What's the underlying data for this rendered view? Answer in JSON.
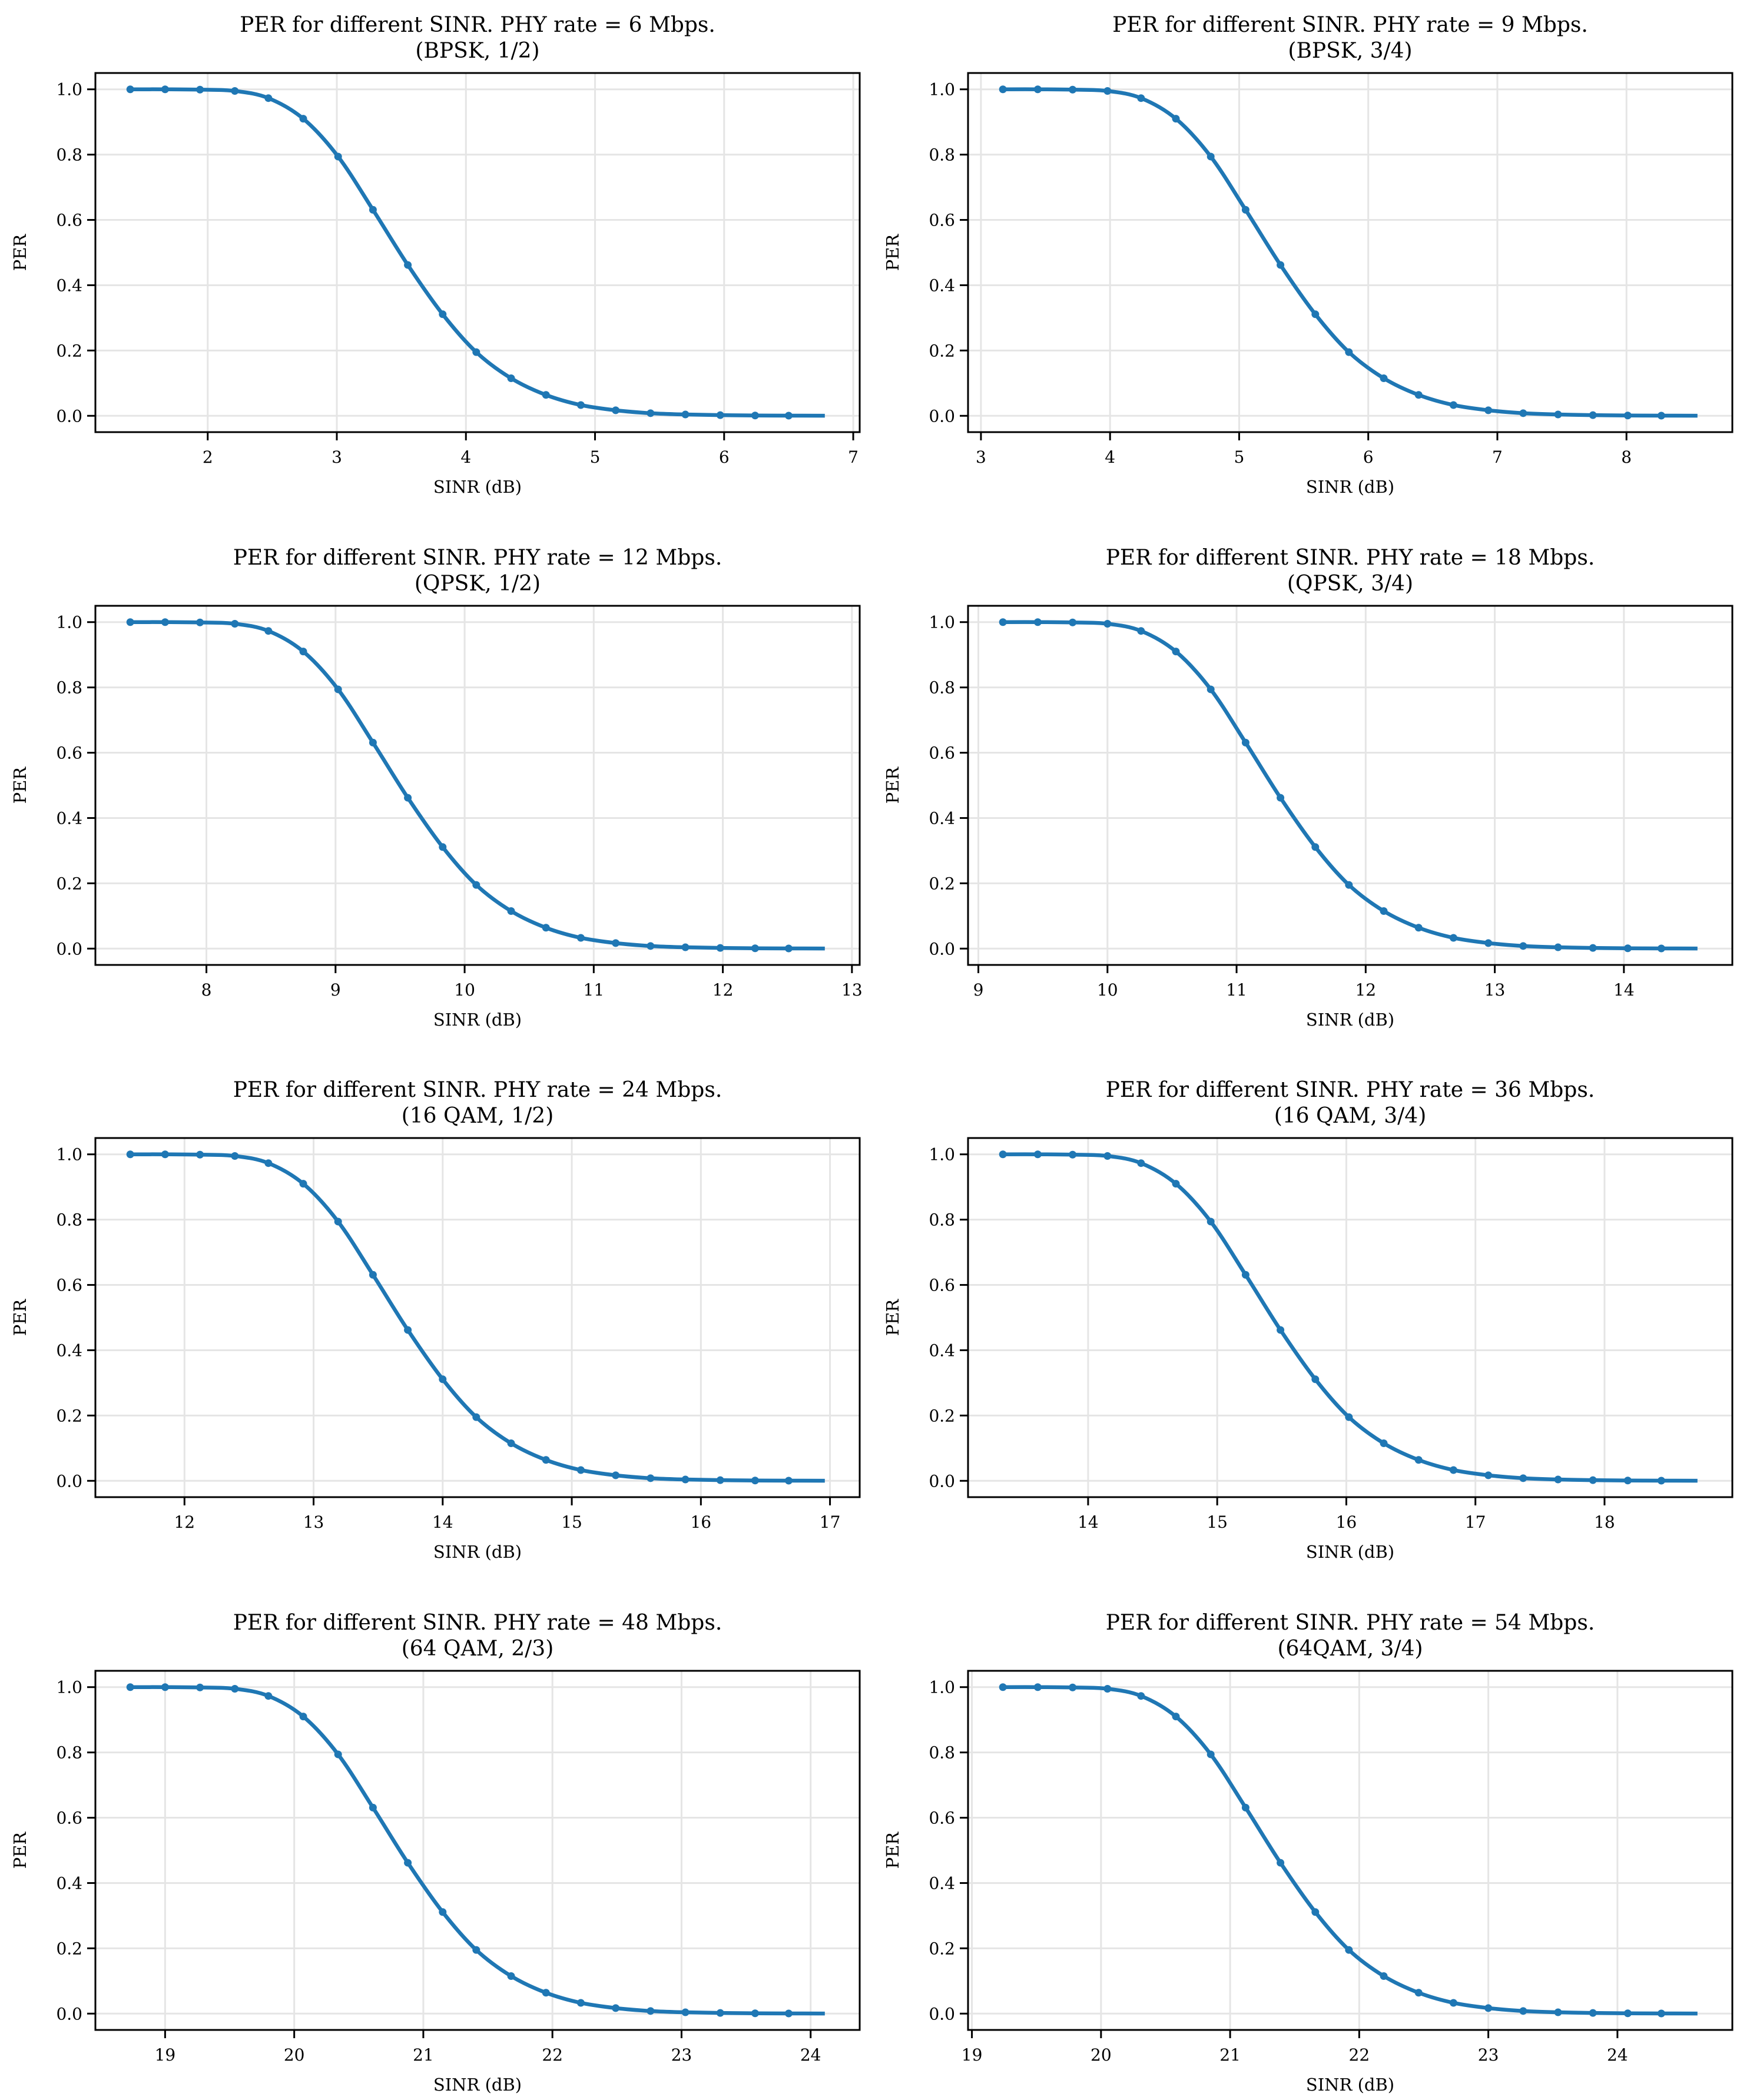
{
  "chart_data": [
    {
      "type": "line",
      "title": "PER for different SINR. PHY rate = 6 Mbps.",
      "subtitle": "(BPSK, 1/2)",
      "xlabel": "SINR (dB)",
      "ylabel": "PER",
      "xticks": [
        2,
        3,
        4,
        5,
        6,
        7
      ],
      "yticks": [
        0.0,
        0.2,
        0.4,
        0.6,
        0.8,
        1.0
      ],
      "xlim": [
        1.13,
        7.05
      ],
      "ylim": [
        -0.05,
        1.05
      ],
      "grid": true,
      "line_end": [
        6.78,
        0.0003
      ],
      "x": [
        1.4,
        1.67,
        1.94,
        2.21,
        2.47,
        2.74,
        3.01,
        3.28,
        3.55,
        3.82,
        4.08,
        4.35,
        4.62,
        4.89,
        5.16,
        5.43,
        5.7,
        5.97,
        6.24,
        6.5
      ],
      "y": [
        1.0,
        1.0,
        0.999,
        0.995,
        0.973,
        0.91,
        0.794,
        0.631,
        0.462,
        0.311,
        0.195,
        0.115,
        0.064,
        0.033,
        0.017,
        0.008,
        0.004,
        0.002,
        0.001,
        0.0005
      ]
    },
    {
      "type": "line",
      "title": "PER for different SINR. PHY rate = 9 Mbps.",
      "subtitle": "(BPSK, 3/4)",
      "xlabel": "SINR (dB)",
      "ylabel": "PER",
      "xticks": [
        3,
        4,
        5,
        6,
        7,
        8
      ],
      "yticks": [
        0.0,
        0.2,
        0.4,
        0.6,
        0.8,
        1.0
      ],
      "xlim": [
        2.9,
        8.82
      ],
      "ylim": [
        -0.05,
        1.05
      ],
      "grid": true,
      "line_end": [
        8.55,
        0.0003
      ],
      "x": [
        3.17,
        3.44,
        3.71,
        3.98,
        4.24,
        4.51,
        4.78,
        5.05,
        5.32,
        5.59,
        5.85,
        6.12,
        6.39,
        6.66,
        6.93,
        7.2,
        7.47,
        7.74,
        8.01,
        8.27
      ],
      "y": [
        1.0,
        1.0,
        0.999,
        0.995,
        0.973,
        0.91,
        0.794,
        0.631,
        0.462,
        0.311,
        0.195,
        0.115,
        0.064,
        0.033,
        0.017,
        0.008,
        0.004,
        0.002,
        0.001,
        0.0005
      ]
    },
    {
      "type": "line",
      "title": "PER for different SINR. PHY rate = 12 Mbps.",
      "subtitle": "(QPSK, 1/2)",
      "xlabel": "SINR (dB)",
      "ylabel": "PER",
      "xticks": [
        8,
        9,
        10,
        11,
        12,
        13
      ],
      "yticks": [
        0.0,
        0.2,
        0.4,
        0.6,
        0.8,
        1.0
      ],
      "xlim": [
        7.14,
        13.06
      ],
      "ylim": [
        -0.05,
        1.05
      ],
      "grid": true,
      "line_end": [
        12.79,
        0.0003
      ],
      "x": [
        7.41,
        7.68,
        7.95,
        8.22,
        8.48,
        8.75,
        9.02,
        9.29,
        9.56,
        9.83,
        10.09,
        10.36,
        10.63,
        10.9,
        11.17,
        11.44,
        11.71,
        11.98,
        12.25,
        12.51
      ],
      "y": [
        1.0,
        1.0,
        0.999,
        0.995,
        0.973,
        0.91,
        0.794,
        0.631,
        0.462,
        0.311,
        0.195,
        0.115,
        0.064,
        0.033,
        0.017,
        0.008,
        0.004,
        0.002,
        0.001,
        0.0005
      ]
    },
    {
      "type": "line",
      "title": "PER for different SINR. PHY rate = 18 Mbps.",
      "subtitle": "(QPSK, 3/4)",
      "xlabel": "SINR (dB)",
      "ylabel": "PER",
      "xticks": [
        9,
        10,
        11,
        12,
        13,
        14
      ],
      "yticks": [
        0.0,
        0.2,
        0.4,
        0.6,
        0.8,
        1.0
      ],
      "xlim": [
        8.92,
        14.84
      ],
      "ylim": [
        -0.05,
        1.05
      ],
      "grid": true,
      "line_end": [
        14.57,
        0.0003
      ],
      "x": [
        9.19,
        9.46,
        9.73,
        10.0,
        10.26,
        10.53,
        10.8,
        11.07,
        11.34,
        11.61,
        11.87,
        12.14,
        12.41,
        12.68,
        12.95,
        13.22,
        13.49,
        13.76,
        14.03,
        14.29
      ],
      "y": [
        1.0,
        1.0,
        0.999,
        0.995,
        0.973,
        0.91,
        0.794,
        0.631,
        0.462,
        0.311,
        0.195,
        0.115,
        0.064,
        0.033,
        0.017,
        0.008,
        0.004,
        0.002,
        0.001,
        0.0005
      ]
    },
    {
      "type": "line",
      "title": "PER for different SINR. PHY rate = 24 Mbps.",
      "subtitle": "(16 QAM, 1/2)",
      "xlabel": "SINR (dB)",
      "ylabel": "PER",
      "xticks": [
        12,
        13,
        14,
        15,
        16,
        17
      ],
      "yticks": [
        0.0,
        0.2,
        0.4,
        0.6,
        0.8,
        1.0
      ],
      "xlim": [
        11.31,
        17.23
      ],
      "ylim": [
        -0.05,
        1.05
      ],
      "grid": true,
      "line_end": [
        16.96,
        0.0003
      ],
      "x": [
        11.58,
        11.85,
        12.12,
        12.39,
        12.65,
        12.92,
        13.19,
        13.46,
        13.73,
        14.0,
        14.26,
        14.53,
        14.8,
        15.07,
        15.34,
        15.61,
        15.88,
        16.15,
        16.42,
        16.68
      ],
      "y": [
        1.0,
        1.0,
        0.999,
        0.995,
        0.973,
        0.91,
        0.794,
        0.631,
        0.462,
        0.311,
        0.195,
        0.115,
        0.064,
        0.033,
        0.017,
        0.008,
        0.004,
        0.002,
        0.001,
        0.0005
      ]
    },
    {
      "type": "line",
      "title": "PER for different SINR. PHY rate = 36 Mbps.",
      "subtitle": "(16 QAM, 3/4)",
      "xlabel": "SINR (dB)",
      "ylabel": "PER",
      "xticks": [
        14,
        15,
        16,
        17,
        18
      ],
      "yticks": [
        0.0,
        0.2,
        0.4,
        0.6,
        0.8,
        1.0
      ],
      "xlim": [
        13.07,
        18.99
      ],
      "ylim": [
        -0.05,
        1.05
      ],
      "grid": true,
      "line_end": [
        18.72,
        0.0003
      ],
      "x": [
        13.34,
        13.61,
        13.88,
        14.15,
        14.41,
        14.68,
        14.95,
        15.22,
        15.49,
        15.76,
        16.02,
        16.29,
        16.56,
        16.83,
        17.1,
        17.37,
        17.64,
        17.91,
        18.18,
        18.44
      ],
      "y": [
        1.0,
        1.0,
        0.999,
        0.995,
        0.973,
        0.91,
        0.794,
        0.631,
        0.462,
        0.311,
        0.195,
        0.115,
        0.064,
        0.033,
        0.017,
        0.008,
        0.004,
        0.002,
        0.001,
        0.0005
      ]
    },
    {
      "type": "line",
      "title": "PER for different SINR. PHY rate = 48 Mbps.",
      "subtitle": "(64 QAM, 2/3)",
      "xlabel": "SINR (dB)",
      "ylabel": "PER",
      "xticks": [
        19,
        20,
        21,
        22,
        23,
        24
      ],
      "yticks": [
        0.0,
        0.2,
        0.4,
        0.6,
        0.8,
        1.0
      ],
      "xlim": [
        18.46,
        24.38
      ],
      "ylim": [
        -0.05,
        1.05
      ],
      "grid": true,
      "line_end": [
        24.11,
        0.0003
      ],
      "x": [
        18.73,
        19.0,
        19.27,
        19.54,
        19.8,
        20.07,
        20.34,
        20.61,
        20.88,
        21.15,
        21.41,
        21.68,
        21.95,
        22.22,
        22.49,
        22.76,
        23.03,
        23.3,
        23.57,
        23.83
      ],
      "y": [
        1.0,
        1.0,
        0.999,
        0.995,
        0.973,
        0.91,
        0.794,
        0.631,
        0.462,
        0.311,
        0.195,
        0.115,
        0.064,
        0.033,
        0.017,
        0.008,
        0.004,
        0.002,
        0.001,
        0.0005
      ]
    },
    {
      "type": "line",
      "title": "PER for different SINR. PHY rate = 54 Mbps.",
      "subtitle": "(64QAM, 3/4)",
      "xlabel": "SINR (dB)",
      "ylabel": "PER",
      "xticks": [
        19,
        20,
        21,
        22,
        23,
        24
      ],
      "yticks": [
        0.0,
        0.2,
        0.4,
        0.6,
        0.8,
        1.0
      ],
      "xlim": [
        18.97,
        24.89
      ],
      "ylim": [
        -0.05,
        1.05
      ],
      "grid": true,
      "line_end": [
        24.62,
        0.0003
      ],
      "x": [
        19.24,
        19.51,
        19.78,
        20.05,
        20.31,
        20.58,
        20.85,
        21.12,
        21.39,
        21.66,
        21.92,
        22.19,
        22.46,
        22.73,
        23.0,
        23.27,
        23.54,
        23.81,
        24.08,
        24.34
      ],
      "y": [
        1.0,
        1.0,
        0.999,
        0.995,
        0.973,
        0.91,
        0.794,
        0.631,
        0.462,
        0.311,
        0.195,
        0.115,
        0.064,
        0.033,
        0.017,
        0.008,
        0.004,
        0.002,
        0.001,
        0.0005
      ]
    }
  ],
  "style": {
    "line_color": "#1f77b4",
    "grid_color": "#e5e5e5",
    "axis_color": "#000000"
  }
}
